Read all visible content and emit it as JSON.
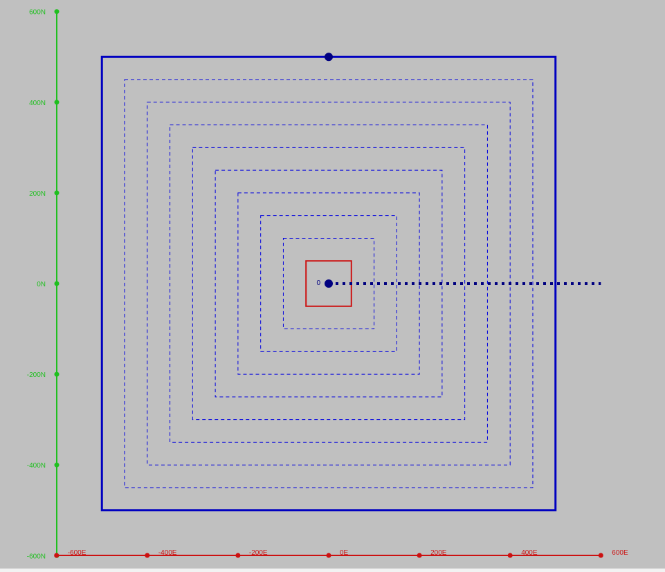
{
  "colors": {
    "background": "#c0c0c0",
    "north_axis": "#1fbf1f",
    "east_axis": "#cc1111",
    "boundary": "#0000c0",
    "pattern": "#0000e0",
    "marker": "#000080",
    "start_box": "#cc1111"
  },
  "axes": {
    "north": {
      "ticks": [
        {
          "value": -600,
          "label": "-600N"
        },
        {
          "value": -400,
          "label": "-400N"
        },
        {
          "value": -200,
          "label": "-200N"
        },
        {
          "value": 0,
          "label": "0N"
        },
        {
          "value": 200,
          "label": "200N"
        },
        {
          "value": 400,
          "label": "400N"
        },
        {
          "value": 600,
          "label": "600N"
        }
      ]
    },
    "east": {
      "ticks": [
        {
          "value": -600,
          "label": "-600E"
        },
        {
          "value": -400,
          "label": "-400E"
        },
        {
          "value": -200,
          "label": "-200E"
        },
        {
          "value": 0,
          "label": "0E"
        },
        {
          "value": 200,
          "label": "200E"
        },
        {
          "value": 400,
          "label": "400E"
        },
        {
          "value": 600,
          "label": "600E"
        }
      ]
    }
  },
  "chart_data": {
    "type": "diagram",
    "units": "m",
    "boundary": {
      "east_min": -500,
      "east_max": 500,
      "north_min": -500,
      "north_max": 500
    },
    "start_box": {
      "east_min": -50,
      "east_max": 50,
      "north_min": -50,
      "north_max": 50
    },
    "square_pattern_half_widths": [
      100,
      150,
      200,
      250,
      300,
      350,
      400,
      450
    ],
    "waypoint_markers": [
      {
        "label": "0",
        "east": 0,
        "north": 0
      },
      {
        "label": "",
        "east": 0,
        "north": 500
      }
    ],
    "dotted_track": {
      "from_east": 0,
      "to_east": 600,
      "north": 0
    }
  }
}
